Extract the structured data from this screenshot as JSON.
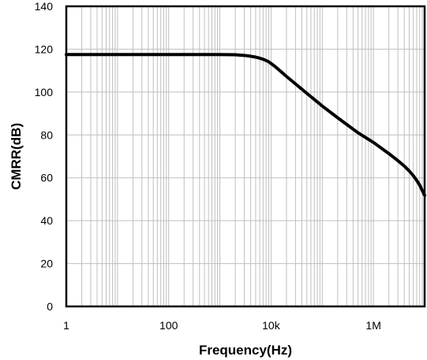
{
  "chart_data": {
    "type": "line",
    "title": "",
    "xlabel": "Frequency(Hz)",
    "ylabel": "CMRR(dB)",
    "x_scale": "log",
    "xlim": [
      1,
      10000000
    ],
    "ylim": [
      0,
      140
    ],
    "x_ticks": [
      {
        "value": 1,
        "label": "1"
      },
      {
        "value": 100,
        "label": "100"
      },
      {
        "value": 10000,
        "label": "10k"
      },
      {
        "value": 1000000,
        "label": "1M"
      }
    ],
    "y_ticks": [
      0,
      20,
      40,
      60,
      80,
      100,
      120,
      140
    ],
    "grid": {
      "x_major": true,
      "x_minor": true,
      "y_major": true
    },
    "legend": "none",
    "colors": {
      "line": "#000000",
      "grid": "#bfbfbf",
      "frame": "#000000"
    },
    "series": [
      {
        "x": [
          1,
          10,
          100,
          1000,
          2000,
          3000,
          4000,
          5000,
          6000,
          7000,
          8000,
          9000,
          10000,
          12000,
          15000,
          20000,
          30000,
          50000,
          100000,
          200000,
          500000,
          1000000,
          2000000,
          3000000,
          4000000,
          5000000,
          6000000,
          7000000,
          8000000,
          10000000
        ],
        "y": [
          117.5,
          117.5,
          117.5,
          117.5,
          117.4,
          117.1,
          116.7,
          116.3,
          115.8,
          115.3,
          114.7,
          114.1,
          113.3,
          111.9,
          109.9,
          107.3,
          103.8,
          99.4,
          93.5,
          88.0,
          81.0,
          76.5,
          71.3,
          68.0,
          65.5,
          63.2,
          61.0,
          58.8,
          56.6,
          51.8
        ]
      }
    ]
  }
}
